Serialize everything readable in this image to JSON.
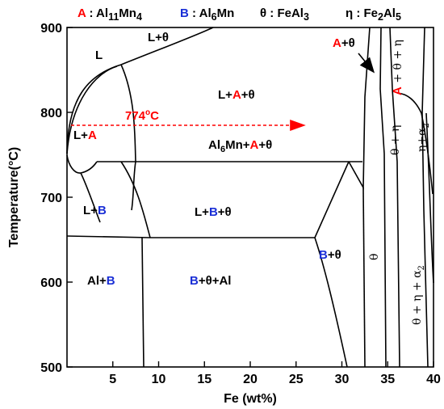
{
  "legend": {
    "a_letter": "A",
    "a_def": ": Al11Mn4",
    "b_letter": "B",
    "b_def": ": Al6Mn",
    "theta_def": "θ : FeAl3",
    "eta_def": "η : Fe2Al5"
  },
  "axes": {
    "xlabel": "Fe (wt%)",
    "ylabel": "Temperature(°C)",
    "x_ticks": [
      "5",
      "10",
      "15",
      "20",
      "25",
      "30",
      "35",
      "40"
    ],
    "y_ticks": [
      "500",
      "600",
      "700",
      "800",
      "900"
    ],
    "xlim": [
      0,
      40
    ],
    "ylim": [
      500,
      900
    ]
  },
  "labels": {
    "L": "L",
    "L_theta": "L+θ",
    "L_A_theta": [
      "L+",
      "A",
      "+θ"
    ],
    "L_A": [
      "L+",
      "A"
    ],
    "temp_line": "774",
    "temp_sup": "o",
    "temp_unit": "C",
    "Al6Mn_A_theta": [
      "Al",
      "6",
      "Mn+",
      "A",
      "+θ"
    ],
    "L_B": [
      "L+",
      "B"
    ],
    "L_B_theta": [
      "L+",
      "B",
      "+θ"
    ],
    "Al_B": [
      "Al+",
      "B"
    ],
    "B_theta_Al": [
      "B",
      "+θ+Al"
    ],
    "B_theta": [
      "B",
      "+θ"
    ],
    "A_theta": [
      "A",
      "+θ"
    ],
    "theta": "θ",
    "theta_eta": "θ + η",
    "A_theta_eta": [
      "A",
      " + θ + η"
    ],
    "eta_alpha": "η+α",
    "eta_alpha_sub": "2",
    "theta_eta_alpha": "θ + η + α",
    "theta_eta_alpha_sub": "2"
  },
  "colors": {
    "accent_red": "#ff0000",
    "accent_blue": "#1a2fd6",
    "line": "#000000"
  }
}
